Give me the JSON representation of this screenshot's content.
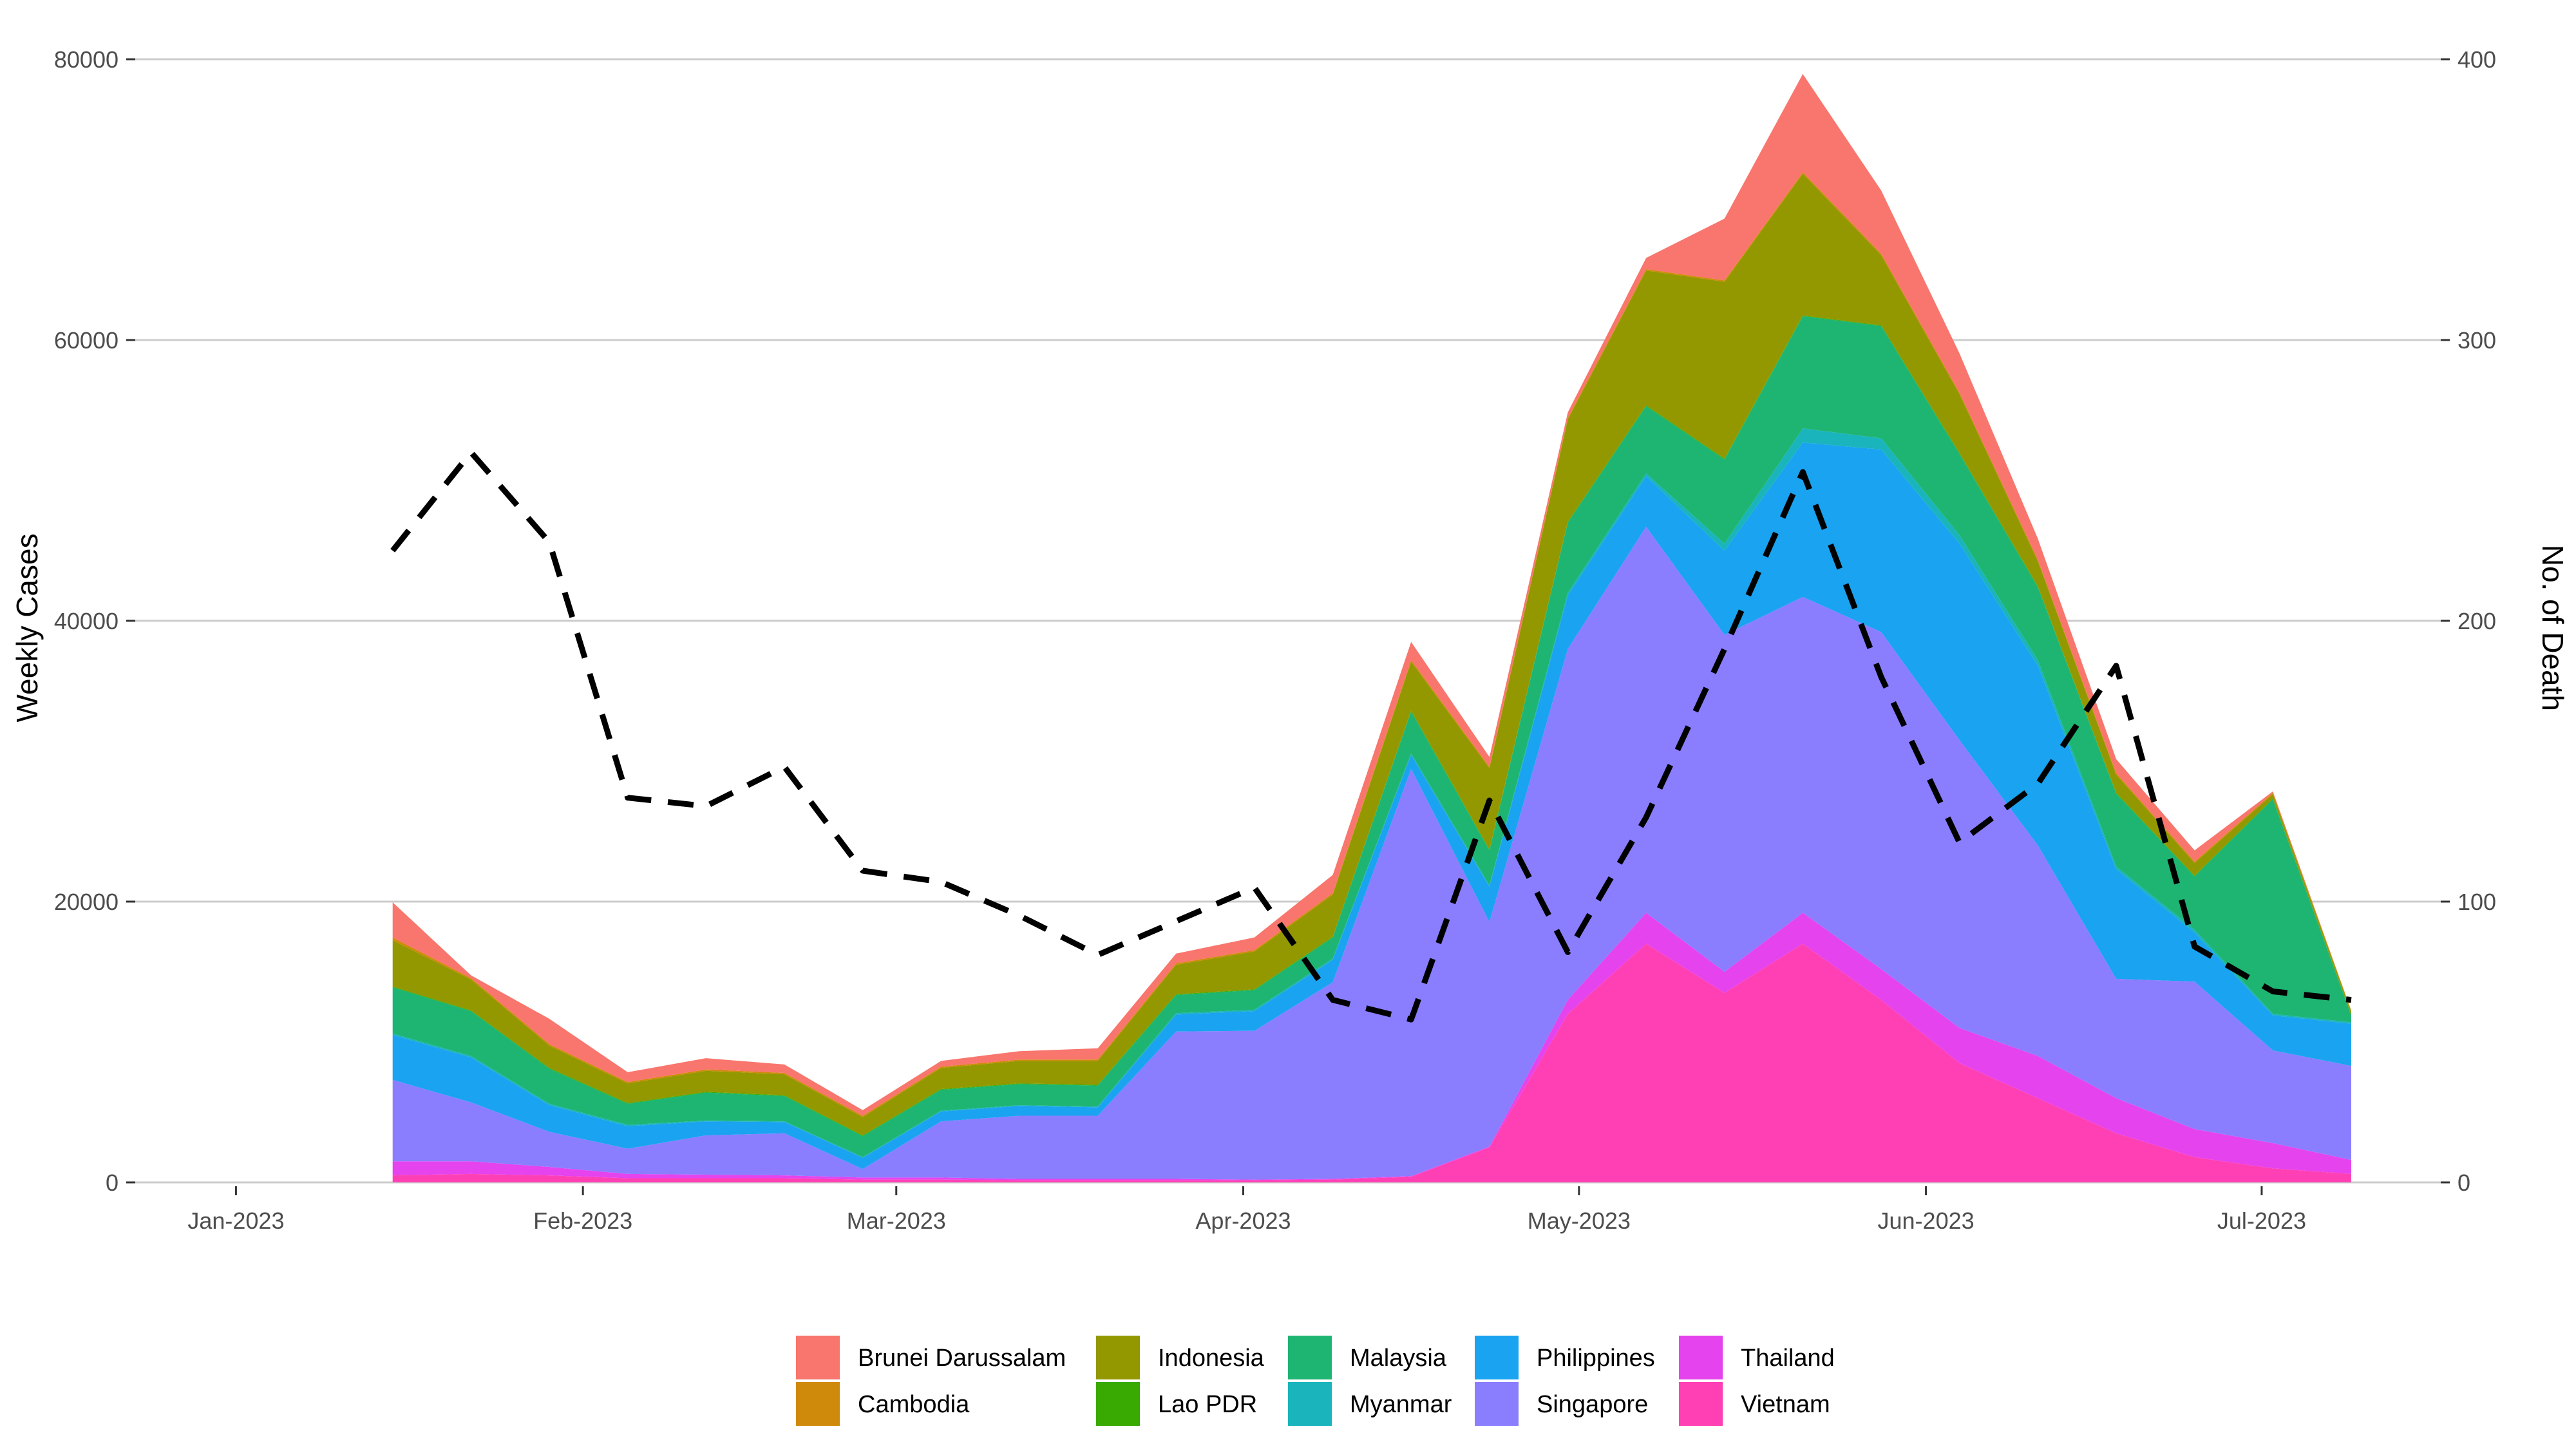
{
  "chart_data": {
    "type": "area",
    "stacked": true,
    "x": [
      "2023-01-15",
      "2023-01-22",
      "2023-01-29",
      "2023-02-05",
      "2023-02-12",
      "2023-02-19",
      "2023-02-26",
      "2023-03-05",
      "2023-03-12",
      "2023-03-19",
      "2023-03-26",
      "2023-04-02",
      "2023-04-09",
      "2023-04-16",
      "2023-04-23",
      "2023-04-30",
      "2023-05-07",
      "2023-05-14",
      "2023-05-21",
      "2023-05-28",
      "2023-06-04",
      "2023-06-11",
      "2023-06-18",
      "2023-06-25",
      "2023-07-02",
      "2023-07-09"
    ],
    "stack_order_bottom_to_top": [
      "Vietnam",
      "Thailand",
      "Singapore",
      "Philippines",
      "Myanmar",
      "Malaysia",
      "Lao PDR",
      "Indonesia",
      "Cambodia",
      "Brunei Darussalam"
    ],
    "series": [
      {
        "name": "Vietnam",
        "color": "#FF40B4",
        "values": [
          500,
          600,
          500,
          300,
          300,
          300,
          200,
          200,
          150,
          150,
          150,
          150,
          200,
          400,
          2500,
          12000,
          17000,
          13500,
          17000,
          13000,
          8500,
          6000,
          3500,
          1800,
          1000,
          600
        ]
      },
      {
        "name": "Thailand",
        "color": "#E543EE",
        "values": [
          1000,
          900,
          600,
          300,
          250,
          200,
          150,
          150,
          100,
          100,
          100,
          50,
          50,
          50,
          50,
          1000,
          2200,
          1500,
          2200,
          2200,
          2500,
          3000,
          2500,
          2000,
          1800,
          1000
        ]
      },
      {
        "name": "Singapore",
        "color": "#8A7EFF",
        "values": [
          5800,
          4200,
          2500,
          1800,
          2800,
          3000,
          600,
          4000,
          4500,
          4500,
          10500,
          10600,
          14000,
          29000,
          16000,
          25000,
          27500,
          24000,
          22500,
          24000,
          20500,
          15000,
          8500,
          10500,
          6600,
          6700
        ]
      },
      {
        "name": "Philippines",
        "color": "#1AA3F0",
        "values": [
          3200,
          3200,
          1900,
          1600,
          1000,
          800,
          800,
          700,
          700,
          600,
          1200,
          1400,
          1600,
          1000,
          2500,
          3800,
          3600,
          6000,
          11000,
          13000,
          14000,
          12800,
          7800,
          3500,
          2500,
          3000
        ]
      },
      {
        "name": "Myanmar",
        "color": "#1AB4BC",
        "values": [
          100,
          100,
          100,
          100,
          50,
          50,
          50,
          50,
          50,
          50,
          100,
          100,
          100,
          100,
          100,
          200,
          200,
          500,
          1000,
          800,
          600,
          400,
          200,
          200,
          100,
          100
        ]
      },
      {
        "name": "Malaysia",
        "color": "#1EB573",
        "values": [
          3300,
          3200,
          2500,
          1500,
          2000,
          1800,
          1500,
          1500,
          1500,
          1500,
          1300,
          1400,
          1500,
          3000,
          2500,
          5000,
          4800,
          6000,
          8000,
          8000,
          5800,
          5200,
          5200,
          3800,
          15300,
          500
        ]
      },
      {
        "name": "Lao PDR",
        "color": "#38AA02",
        "values": [
          50,
          50,
          50,
          50,
          50,
          50,
          50,
          50,
          50,
          50,
          50,
          50,
          50,
          50,
          50,
          50,
          50,
          50,
          50,
          50,
          50,
          50,
          50,
          50,
          50,
          50
        ]
      },
      {
        "name": "Indonesia",
        "color": "#939800",
        "values": [
          3300,
          2200,
          1600,
          1400,
          1500,
          1500,
          1300,
          1500,
          1600,
          1700,
          2100,
          2700,
          3000,
          3500,
          5800,
          7300,
          9600,
          12600,
          10100,
          5000,
          4200,
          1800,
          1300,
          900,
          300,
          200
        ]
      },
      {
        "name": "Cambodia",
        "color": "#D08A0B",
        "values": [
          200,
          100,
          100,
          100,
          100,
          100,
          100,
          100,
          100,
          100,
          100,
          100,
          100,
          100,
          100,
          100,
          100,
          100,
          100,
          100,
          100,
          100,
          100,
          100,
          100,
          100
        ]
      },
      {
        "name": "Brunei Darussalam",
        "color": "#F8766D",
        "values": [
          2500,
          200,
          1800,
          700,
          800,
          600,
          400,
          400,
          600,
          800,
          700,
          900,
          1300,
          1300,
          700,
          400,
          800,
          4400,
          7000,
          4500,
          2800,
          1500,
          1000,
          800,
          100,
          0
        ]
      }
    ],
    "secondary_line": {
      "name": "No. of Death",
      "style": "dashed",
      "color": "#000000",
      "values": [
        225,
        260,
        228,
        137,
        134,
        148,
        111,
        107,
        95,
        81,
        93,
        105,
        65,
        58,
        136,
        82,
        130,
        190,
        253,
        180,
        121,
        142,
        184,
        84,
        68,
        65
      ]
    },
    "x_ticks": [
      "Jan-2023",
      "Feb-2023",
      "Mar-2023",
      "Apr-2023",
      "May-2023",
      "Jun-2023",
      "Jul-2023"
    ],
    "x_tick_dates": [
      "2023-01-01",
      "2023-02-01",
      "2023-03-01",
      "2023-04-01",
      "2023-05-01",
      "2023-06-01",
      "2023-07-01"
    ],
    "x_range": [
      "2022-12-23",
      "2023-07-17"
    ],
    "ylabel": "Weekly Cases",
    "ylim": [
      0,
      80000
    ],
    "y_ticks": [
      "0",
      "20000",
      "40000",
      "60000",
      "80000"
    ],
    "y2label": "No. of Death",
    "y2lim": [
      0,
      400
    ],
    "y2_ticks": [
      "0",
      "100",
      "200",
      "300",
      "400"
    ],
    "grid": "horizontal",
    "legend_position": "bottom",
    "legend_items": [
      "Brunei Darussalam",
      "Cambodia",
      "Indonesia",
      "Lao PDR",
      "Malaysia",
      "Myanmar",
      "Philippines",
      "Singapore",
      "Thailand",
      "Vietnam"
    ],
    "legend_colors": [
      "#F8766D",
      "#D08A0B",
      "#939800",
      "#38AA02",
      "#1EB573",
      "#1AB4BC",
      "#1AA3F0",
      "#8A7EFF",
      "#E543EE",
      "#FF40B4"
    ]
  }
}
